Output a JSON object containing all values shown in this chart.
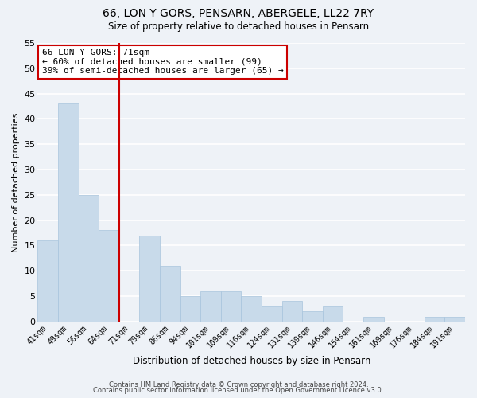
{
  "title": "66, LON Y GORS, PENSARN, ABERGELE, LL22 7RY",
  "subtitle": "Size of property relative to detached houses in Pensarn",
  "xlabel": "Distribution of detached houses by size in Pensarn",
  "ylabel": "Number of detached properties",
  "categories": [
    "41sqm",
    "49sqm",
    "56sqm",
    "64sqm",
    "71sqm",
    "79sqm",
    "86sqm",
    "94sqm",
    "101sqm",
    "109sqm",
    "116sqm",
    "124sqm",
    "131sqm",
    "139sqm",
    "146sqm",
    "154sqm",
    "161sqm",
    "169sqm",
    "176sqm",
    "184sqm",
    "191sqm"
  ],
  "values": [
    16,
    43,
    25,
    18,
    0,
    17,
    11,
    5,
    6,
    6,
    5,
    3,
    4,
    2,
    3,
    0,
    1,
    0,
    0,
    1,
    1
  ],
  "bar_color": "#c8daea",
  "bar_edge_color": "#a8c4dc",
  "highlight_line_color": "#cc0000",
  "annotation_text": "66 LON Y GORS: 71sqm\n← 60% of detached houses are smaller (99)\n39% of semi-detached houses are larger (65) →",
  "annotation_box_color": "white",
  "annotation_box_edge_color": "#cc0000",
  "ylim": [
    0,
    55
  ],
  "yticks": [
    0,
    5,
    10,
    15,
    20,
    25,
    30,
    35,
    40,
    45,
    50,
    55
  ],
  "footer1": "Contains HM Land Registry data © Crown copyright and database right 2024.",
  "footer2": "Contains public sector information licensed under the Open Government Licence v3.0.",
  "background_color": "#eef2f7",
  "grid_color": "#ffffff"
}
